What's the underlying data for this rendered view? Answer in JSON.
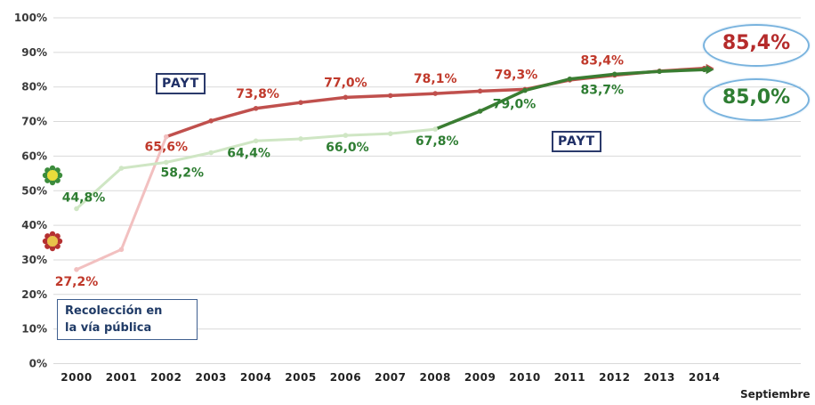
{
  "chart_data": {
    "type": "line",
    "x": [
      "2000",
      "2001",
      "2002",
      "2003",
      "2004",
      "2005",
      "2006",
      "2007",
      "2008",
      "2009",
      "2010",
      "2011",
      "2012",
      "2013",
      "2014"
    ],
    "x_sublabel": "Septiembre",
    "ylim": [
      0,
      100
    ],
    "yticks": [
      "0%",
      "10%",
      "20%",
      "30%",
      "40%",
      "50%",
      "60%",
      "70%",
      "80%",
      "90%",
      "100%"
    ],
    "grid": true,
    "series": [
      {
        "color": "#c0504d",
        "light_color": "#f2c0c0",
        "values": [
          27.2,
          33.0,
          65.6,
          70.2,
          73.8,
          75.5,
          77.0,
          77.5,
          78.1,
          78.8,
          79.3,
          82.0,
          83.4,
          84.6,
          85.4
        ],
        "labels": [
          {
            "x": "2000",
            "text": "27,2%"
          },
          {
            "x": "2002",
            "text": "65,6%"
          },
          {
            "x": "2004",
            "text": "73,8%"
          },
          {
            "x": "2006",
            "text": "77,0%"
          },
          {
            "x": "2008",
            "text": "78,1%"
          },
          {
            "x": "2010",
            "text": "79,3%"
          },
          {
            "x": "2012",
            "text": "83,4%"
          }
        ],
        "final_label": "85,4%"
      },
      {
        "color": "#3a7d32",
        "light_color": "#cfe6c4",
        "values": [
          44.8,
          56.5,
          58.2,
          61.0,
          64.4,
          65.0,
          66.0,
          66.5,
          67.8,
          73.0,
          79.0,
          82.3,
          83.7,
          84.5,
          85.0
        ],
        "labels": [
          {
            "x": "2000",
            "text": "44,8%"
          },
          {
            "x": "2002",
            "text": "58,2%"
          },
          {
            "x": "2004",
            "text": "64,4%"
          },
          {
            "x": "2006",
            "text": "66,0%"
          },
          {
            "x": "2008",
            "text": "67,8%"
          },
          {
            "x": "2010",
            "text": "79,0%"
          },
          {
            "x": "2012",
            "text": "83,7%"
          }
        ],
        "final_label": "85,0%"
      }
    ],
    "annotations": {
      "payt_1": "PAYT",
      "payt_2": "PAYT",
      "street_line1": "Recolección en",
      "street_line2": "la vía pública"
    }
  }
}
